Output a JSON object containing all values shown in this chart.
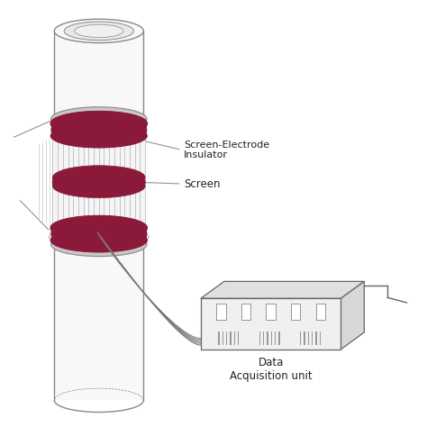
{
  "bg_color": "#ffffff",
  "pipe_body_color": "#f8f8f8",
  "pipe_edge_color": "#888888",
  "electrode_color": "#8b1a3a",
  "insulator_ring_color": "#d0d0d0",
  "screen_stripe_color": "#aaaaaa",
  "wire_color": "#777777",
  "daq_front_color": "#f0f0f0",
  "daq_top_color": "#e0e0e0",
  "daq_right_color": "#d8d8d8",
  "daq_edge_color": "#666666",
  "label_color": "#222222",
  "ann_line_color": "#999999",
  "label_sei": "Screen-Electrode\nInsulator",
  "label_screen": "Screen",
  "label_daq": "Data\nAcquisition unit",
  "figsize": [
    4.74,
    4.74
  ],
  "dpi": 100
}
